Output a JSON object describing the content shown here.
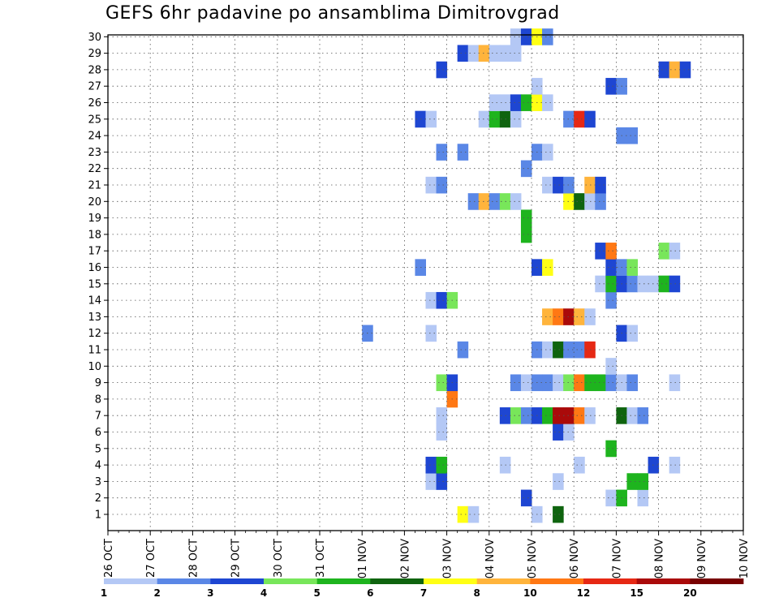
{
  "page": {
    "title": "GEFS 6hr padavine po ansamblima Dimitrovgrad"
  },
  "chart_data": {
    "type": "heatmap",
    "title": "GEFS 6hr padavine po ansamblima Dimitrovgrad",
    "xlabel": "",
    "ylabel": "",
    "x_unit": "6-hour step",
    "x_ticks": [
      "26 OCT",
      "27 OCT",
      "28 OCT",
      "29 OCT",
      "30 OCT",
      "31 OCT",
      "01 NOV",
      "02 NOV",
      "03 NOV",
      "04 NOV",
      "05 NOV",
      "06 NOV",
      "07 NOV",
      "08 NOV",
      "09 NOV",
      "10 NOV"
    ],
    "y_ticks": [
      1,
      2,
      3,
      4,
      5,
      6,
      7,
      8,
      9,
      10,
      11,
      12,
      13,
      14,
      15,
      16,
      17,
      18,
      19,
      20,
      21,
      22,
      23,
      24,
      25,
      26,
      27,
      28,
      29,
      30
    ],
    "grid": true,
    "legend": {
      "position": "bottom",
      "labels": [
        "1",
        "2",
        "3",
        "4",
        "5",
        "6",
        "7",
        "8",
        "10",
        "12",
        "15",
        "20"
      ],
      "colors": [
        "#b4c8f5",
        "#5a87e6",
        "#1e46d2",
        "#78e65a",
        "#1eb41e",
        "#0f640f",
        "#ffff14",
        "#ffb43c",
        "#ff7814",
        "#e62814",
        "#aa0a0a",
        "#780000"
      ]
    },
    "cells": [
      [
        1,
        33,
        7
      ],
      [
        1,
        34,
        1
      ],
      [
        1,
        40,
        1
      ],
      [
        1,
        42,
        6
      ],
      [
        2,
        39,
        3
      ],
      [
        2,
        47,
        1
      ],
      [
        2,
        48,
        5
      ],
      [
        2,
        50,
        1
      ],
      [
        3,
        30,
        1
      ],
      [
        3,
        31,
        3
      ],
      [
        3,
        42,
        1
      ],
      [
        3,
        49,
        5
      ],
      [
        3,
        50,
        5
      ],
      [
        4,
        30,
        3
      ],
      [
        4,
        31,
        5
      ],
      [
        4,
        37,
        1
      ],
      [
        4,
        44,
        1
      ],
      [
        4,
        51,
        3
      ],
      [
        4,
        53,
        1
      ],
      [
        5,
        47,
        5
      ],
      [
        6,
        31,
        1
      ],
      [
        6,
        42,
        3
      ],
      [
        6,
        43,
        1
      ],
      [
        7,
        31,
        1
      ],
      [
        7,
        37,
        3
      ],
      [
        7,
        38,
        4
      ],
      [
        7,
        39,
        2
      ],
      [
        7,
        40,
        3
      ],
      [
        7,
        41,
        5
      ],
      [
        7,
        42,
        11
      ],
      [
        7,
        43,
        11
      ],
      [
        7,
        44,
        9
      ],
      [
        7,
        45,
        1
      ],
      [
        7,
        48,
        6
      ],
      [
        7,
        49,
        1
      ],
      [
        7,
        50,
        2
      ],
      [
        8,
        32,
        9
      ],
      [
        9,
        31,
        4
      ],
      [
        9,
        32,
        3
      ],
      [
        9,
        38,
        2
      ],
      [
        9,
        39,
        1
      ],
      [
        9,
        40,
        2
      ],
      [
        9,
        41,
        2
      ],
      [
        9,
        42,
        1
      ],
      [
        9,
        43,
        4
      ],
      [
        9,
        44,
        9
      ],
      [
        9,
        45,
        5
      ],
      [
        9,
        46,
        5
      ],
      [
        9,
        47,
        2
      ],
      [
        9,
        48,
        1
      ],
      [
        9,
        49,
        2
      ],
      [
        9,
        53,
        1
      ],
      [
        10,
        47,
        1
      ],
      [
        11,
        33,
        2
      ],
      [
        11,
        40,
        2
      ],
      [
        11,
        41,
        1
      ],
      [
        11,
        42,
        6
      ],
      [
        11,
        43,
        2
      ],
      [
        11,
        44,
        2
      ],
      [
        11,
        45,
        10
      ],
      [
        12,
        24,
        2
      ],
      [
        12,
        30,
        1
      ],
      [
        12,
        48,
        3
      ],
      [
        12,
        49,
        1
      ],
      [
        13,
        41,
        8
      ],
      [
        13,
        42,
        9
      ],
      [
        13,
        43,
        11
      ],
      [
        13,
        44,
        8
      ],
      [
        13,
        45,
        1
      ],
      [
        14,
        30,
        1
      ],
      [
        14,
        31,
        3
      ],
      [
        14,
        32,
        4
      ],
      [
        14,
        47,
        2
      ],
      [
        15,
        46,
        1
      ],
      [
        15,
        47,
        5
      ],
      [
        15,
        48,
        3
      ],
      [
        15,
        49,
        2
      ],
      [
        15,
        50,
        1
      ],
      [
        15,
        51,
        1
      ],
      [
        15,
        52,
        5
      ],
      [
        15,
        53,
        3
      ],
      [
        16,
        29,
        2
      ],
      [
        16,
        40,
        3
      ],
      [
        16,
        41,
        7
      ],
      [
        16,
        47,
        3
      ],
      [
        16,
        48,
        2
      ],
      [
        16,
        49,
        4
      ],
      [
        17,
        46,
        3
      ],
      [
        17,
        47,
        9
      ],
      [
        17,
        52,
        4
      ],
      [
        17,
        53,
        1
      ],
      [
        18,
        39,
        5
      ],
      [
        19,
        39,
        5
      ],
      [
        20,
        34,
        2
      ],
      [
        20,
        35,
        8
      ],
      [
        20,
        36,
        2
      ],
      [
        20,
        37,
        4
      ],
      [
        20,
        38,
        1
      ],
      [
        20,
        43,
        7
      ],
      [
        20,
        44,
        6
      ],
      [
        20,
        45,
        1
      ],
      [
        20,
        46,
        2
      ],
      [
        21,
        30,
        1
      ],
      [
        21,
        31,
        2
      ],
      [
        21,
        41,
        1
      ],
      [
        21,
        42,
        3
      ],
      [
        21,
        43,
        2
      ],
      [
        21,
        45,
        8
      ],
      [
        21,
        46,
        3
      ],
      [
        22,
        39,
        2
      ],
      [
        23,
        31,
        2
      ],
      [
        23,
        33,
        2
      ],
      [
        23,
        40,
        2
      ],
      [
        23,
        41,
        1
      ],
      [
        24,
        48,
        2
      ],
      [
        24,
        49,
        2
      ],
      [
        25,
        29,
        3
      ],
      [
        25,
        30,
        1
      ],
      [
        25,
        35,
        1
      ],
      [
        25,
        36,
        5
      ],
      [
        25,
        37,
        6
      ],
      [
        25,
        38,
        1
      ],
      [
        25,
        43,
        2
      ],
      [
        25,
        44,
        10
      ],
      [
        25,
        45,
        3
      ],
      [
        26,
        36,
        1
      ],
      [
        26,
        37,
        1
      ],
      [
        26,
        38,
        3
      ],
      [
        26,
        39,
        5
      ],
      [
        26,
        40,
        7
      ],
      [
        26,
        41,
        1
      ],
      [
        27,
        40,
        1
      ],
      [
        27,
        47,
        3
      ],
      [
        27,
        48,
        2
      ],
      [
        28,
        31,
        3
      ],
      [
        28,
        52,
        3
      ],
      [
        28,
        53,
        8
      ],
      [
        28,
        54,
        3
      ],
      [
        29,
        33,
        3
      ],
      [
        29,
        34,
        1
      ],
      [
        29,
        35,
        8
      ],
      [
        29,
        36,
        1
      ],
      [
        29,
        37,
        1
      ],
      [
        29,
        38,
        1
      ],
      [
        30,
        38,
        1
      ],
      [
        30,
        39,
        3
      ],
      [
        30,
        40,
        7
      ],
      [
        30,
        41,
        2
      ]
    ]
  }
}
